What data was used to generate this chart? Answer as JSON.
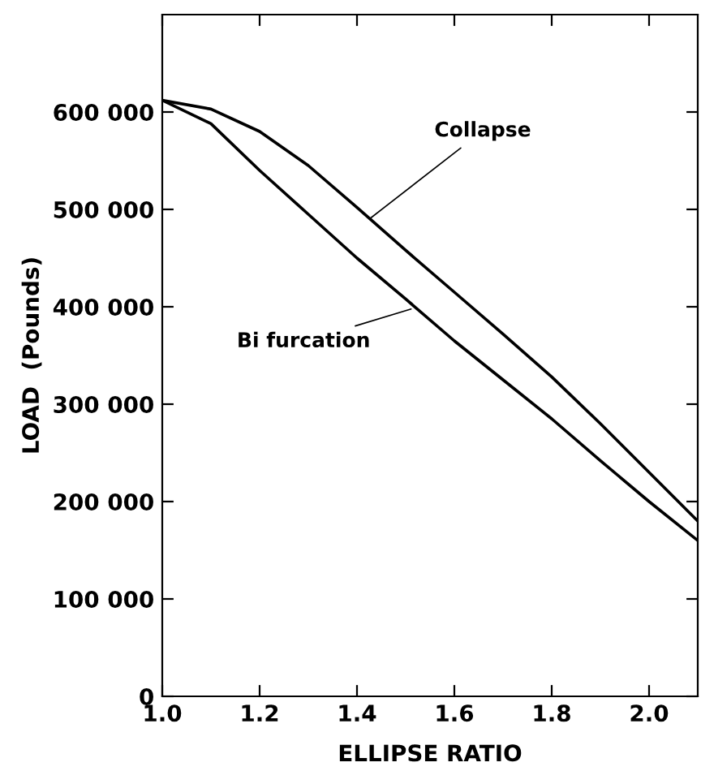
{
  "chart_data": {
    "type": "line",
    "xlabel": "ELLIPSE RATIO",
    "ylabel": "LOAD  (Pounds)",
    "x": [
      1.0,
      1.1,
      1.2,
      1.3,
      1.4,
      1.5,
      1.6,
      1.7,
      1.8,
      1.9,
      2.0,
      2.1
    ],
    "series": [
      {
        "color": "#000000",
        "values": [
          612000,
          603000,
          580000,
          545000,
          502000,
          458000,
          415000,
          372000,
          328000,
          280000,
          230000,
          180000
        ]
      },
      {
        "color": "#000000",
        "values": [
          612000,
          588000,
          540000,
          495000,
          450000,
          408000,
          365000,
          325000,
          285000,
          242000,
          200000,
          160000
        ]
      }
    ],
    "annotations": [
      {
        "text": "Collapse",
        "x": 1.42,
        "y": 488000
      },
      {
        "text": "Bi furcation",
        "x": 1.52,
        "y": 399000
      }
    ],
    "xlim": [
      1.0,
      2.1
    ],
    "xticks": [
      {
        "value": 1.0,
        "label": "1.0"
      },
      1.2,
      1.4,
      1.6,
      1.8,
      {
        "value": 2.0,
        "label": "2.0"
      }
    ],
    "ylim": [
      0,
      700000
    ],
    "yticks": [
      0,
      {
        "value": 100000,
        "label": "100 000"
      },
      {
        "value": 200000,
        "label": "200 000"
      },
      {
        "value": 300000,
        "label": "300 000"
      },
      {
        "value": 400000,
        "label": "400 000"
      },
      {
        "value": 500000,
        "label": "500 000"
      },
      {
        "value": 600000,
        "label": "600 000"
      }
    ],
    "grid": false,
    "legend": false,
    "marker": "none",
    "line_style": "solid"
  }
}
